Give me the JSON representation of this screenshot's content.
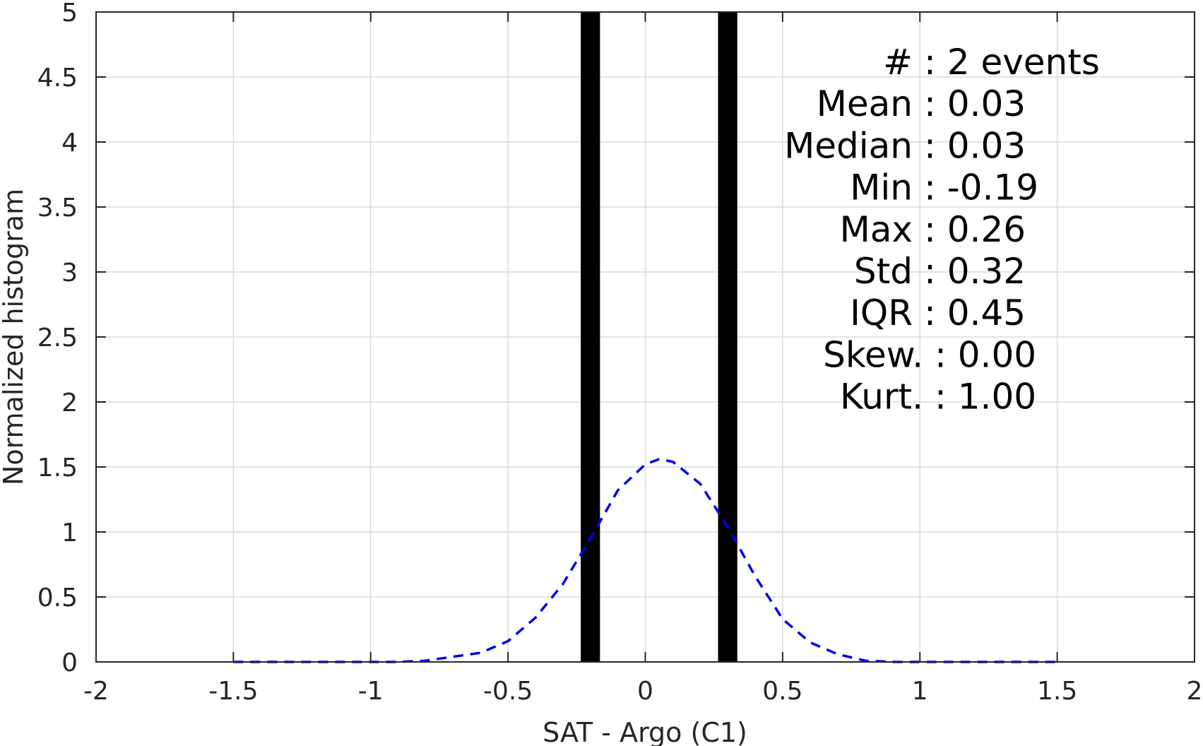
{
  "chart_data": {
    "type": "bar",
    "xlabel": "SAT - Argo (C1)",
    "ylabel": "Normalized histogram",
    "xlim": [
      -2,
      2
    ],
    "ylim": [
      0,
      5
    ],
    "grid": true,
    "x_ticks": [
      -2,
      -1.5,
      -1,
      -0.5,
      0,
      0.5,
      1,
      1.5,
      2
    ],
    "x_tick_labels": [
      "-2",
      "-1.5",
      "-1",
      "-0.5",
      "0",
      "0.5",
      "1",
      "1.5",
      "2"
    ],
    "y_ticks": [
      0,
      0.5,
      1,
      1.5,
      2,
      2.5,
      3,
      3.5,
      4,
      4.5,
      5
    ],
    "y_tick_labels": [
      "0",
      "0.5",
      "1",
      "1.5",
      "2",
      "2.5",
      "3",
      "3.5",
      "4",
      "4.5",
      "5"
    ],
    "histogram": {
      "color": "#000000",
      "bars": [
        {
          "center": -0.2,
          "width": 0.07,
          "value": 5
        },
        {
          "center": 0.3,
          "width": 0.07,
          "value": 5
        }
      ]
    },
    "fit_curve": {
      "style": "dashed",
      "color": "#0000ee",
      "x": [
        -1.5,
        -1.4,
        -1.3,
        -1.2,
        -1.1,
        -1.0,
        -0.9,
        -0.8,
        -0.7,
        -0.6,
        -0.5,
        -0.4,
        -0.3,
        -0.2,
        -0.1,
        0.0,
        0.05,
        0.1,
        0.2,
        0.3,
        0.4,
        0.5,
        0.6,
        0.7,
        0.8,
        0.9,
        1.0,
        1.1,
        1.2,
        1.3,
        1.4,
        1.5
      ],
      "y": [
        0.0,
        0.0,
        0.0,
        0.0,
        0.0,
        0.0,
        0.0,
        0.01,
        0.04,
        0.07,
        0.16,
        0.34,
        0.6,
        0.95,
        1.32,
        1.52,
        1.56,
        1.54,
        1.37,
        1.04,
        0.66,
        0.33,
        0.15,
        0.06,
        0.01,
        0.0,
        0.0,
        0.0,
        0.0,
        0.0,
        0.0,
        0.0
      ]
    },
    "stats": [
      {
        "label": "#  ",
        "value": ": 2 events"
      },
      {
        "label": "Mean",
        "value": ": 0.03"
      },
      {
        "label": "Median",
        "value": ": 0.03"
      },
      {
        "label": "Min",
        "value": ": -0.19"
      },
      {
        "label": "Max",
        "value": ": 0.26"
      },
      {
        "label": "Std",
        "value": ": 0.32"
      },
      {
        "label": "IQR",
        "value": ": 0.45"
      },
      {
        "label": "Skew.",
        "value": ": 0.00"
      },
      {
        "label": "Kurt.",
        "value": ": 1.00"
      }
    ]
  }
}
